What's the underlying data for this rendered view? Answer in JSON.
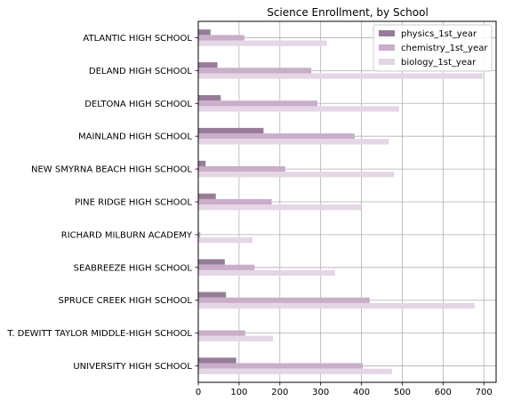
{
  "chart_data": {
    "type": "bar",
    "orientation": "horizontal",
    "title": "Science Enrollment, by School",
    "xlabel": "",
    "ylabel": "",
    "xlim": [
      0,
      730
    ],
    "xticks": [
      0,
      100,
      200,
      300,
      400,
      500,
      600,
      700
    ],
    "grid": true,
    "legend_position": "top-right",
    "categories": [
      "ATLANTIC HIGH SCHOOL",
      "DELAND HIGH SCHOOL",
      "DELTONA HIGH SCHOOL",
      "MAINLAND HIGH SCHOOL",
      "NEW SMYRNA BEACH HIGH SCHOOL",
      "PINE RIDGE HIGH SCHOOL",
      "RICHARD MILBURN ACADEMY",
      "SEABREEZE HIGH SCHOOL",
      "SPRUCE CREEK HIGH SCHOOL",
      "T. DEWITT TAYLOR MIDDLE-HIGH SCHOOL",
      "UNIVERSITY HIGH SCHOOL"
    ],
    "series": [
      {
        "name": "physics_1st_year",
        "color": "#977c97",
        "values": [
          30,
          47,
          55,
          160,
          18,
          43,
          0,
          65,
          68,
          0,
          93
        ]
      },
      {
        "name": "chemistry_1st_year",
        "color": "#c9adc9",
        "values": [
          113,
          277,
          292,
          383,
          213,
          180,
          5,
          138,
          420,
          115,
          403
        ]
      },
      {
        "name": "biology_1st_year",
        "color": "#e4d6e4",
        "values": [
          315,
          697,
          492,
          467,
          480,
          400,
          133,
          335,
          677,
          183,
          475
        ]
      }
    ]
  }
}
